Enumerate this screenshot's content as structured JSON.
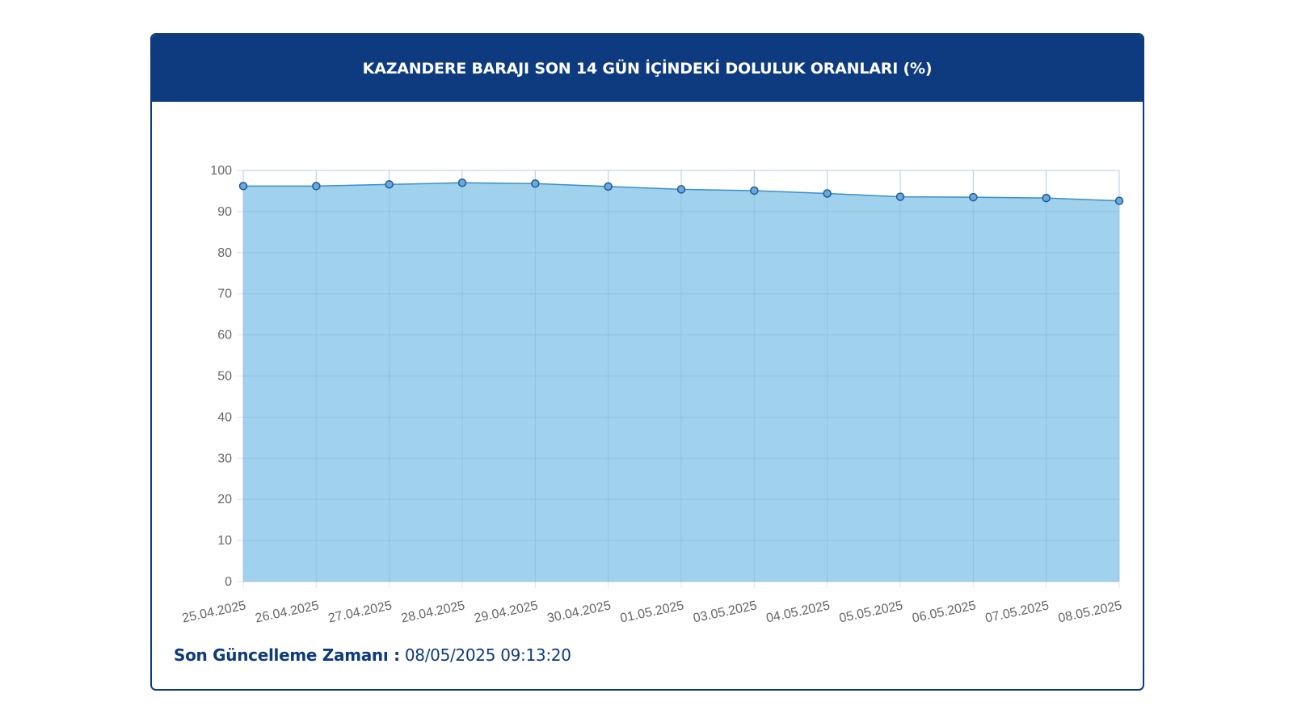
{
  "header": {
    "title": "KAZANDERE BARAJI SON 14 GÜN İÇİNDEKİ DOLULUK ORANLARI (%)"
  },
  "footer": {
    "label": "Son Güncelleme Zamanı :",
    "value": "08/05/2025 09:13:20"
  },
  "colors": {
    "header_bg": "#0e3b80",
    "area_fill": "#9bcfec",
    "line": "#3a8fc9",
    "point_fill": "#6aa9dc",
    "point_stroke": "#1d5a96"
  },
  "chart_data": {
    "type": "area",
    "title": "KAZANDERE BARAJI SON 14 GÜN İÇİNDEKİ DOLULUK ORANLARI (%)",
    "xlabel": "",
    "ylabel": "",
    "ylim": [
      0,
      100
    ],
    "yticks": [
      "0",
      "10",
      "20",
      "30",
      "40",
      "50",
      "60",
      "70",
      "80",
      "90",
      "100"
    ],
    "grid": true,
    "categories": [
      "25.04.2025",
      "26.04.2025",
      "27.04.2025",
      "28.04.2025",
      "29.04.2025",
      "30.04.2025",
      "01.05.2025",
      "03.05.2025",
      "04.05.2025",
      "05.05.2025",
      "06.05.2025",
      "07.05.2025",
      "08.05.2025"
    ],
    "series": [
      {
        "values": [
          96.2,
          96.2,
          96.6,
          97.0,
          96.8,
          96.1,
          95.4,
          95.1,
          94.4,
          93.6,
          93.5,
          93.3,
          92.6
        ]
      }
    ]
  }
}
